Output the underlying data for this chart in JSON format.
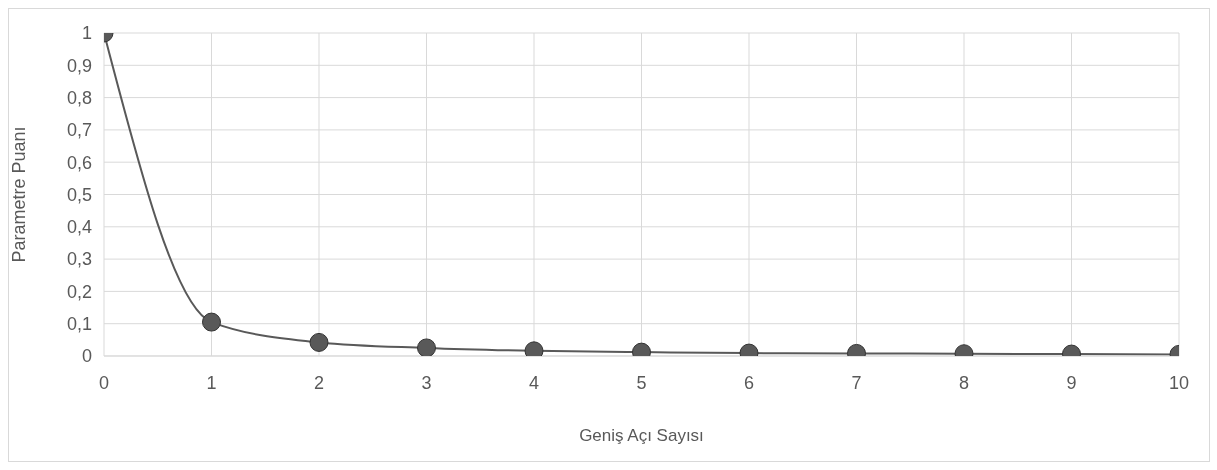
{
  "chart_data": {
    "type": "line",
    "xlabel": "Geniş Açı Sayısı",
    "ylabel": "Parametre Puanı",
    "x": [
      0,
      1,
      2,
      3,
      4,
      5,
      6,
      7,
      8,
      9,
      10
    ],
    "series": [
      {
        "color": "#595959",
        "values": [
          1,
          0.105,
          0.042,
          0.025,
          0.016,
          0.012,
          0.009,
          0.008,
          0.007,
          0.006,
          0.005
        ]
      }
    ],
    "xlim": [
      0,
      10
    ],
    "xticks": [
      0,
      1,
      2,
      3,
      4,
      5,
      6,
      7,
      8,
      9,
      10
    ],
    "ylim": [
      0,
      1
    ],
    "yticks": [
      {
        "value": 0,
        "label": "0"
      },
      {
        "value": 0.1,
        "label": "0,1"
      },
      {
        "value": 0.2,
        "label": "0,2"
      },
      {
        "value": 0.3,
        "label": "0,3"
      },
      {
        "value": 0.4,
        "label": "0,4"
      },
      {
        "value": 0.5,
        "label": "0,5"
      },
      {
        "value": 0.6,
        "label": "0,6"
      },
      {
        "value": 0.7,
        "label": "0,7"
      },
      {
        "value": 0.8,
        "label": "0,8"
      },
      {
        "value": 0.9,
        "label": "0,9"
      },
      {
        "value": 1,
        "label": "1"
      }
    ],
    "grid": true,
    "marker": "circle",
    "line_style": "solid",
    "legend": false
  }
}
